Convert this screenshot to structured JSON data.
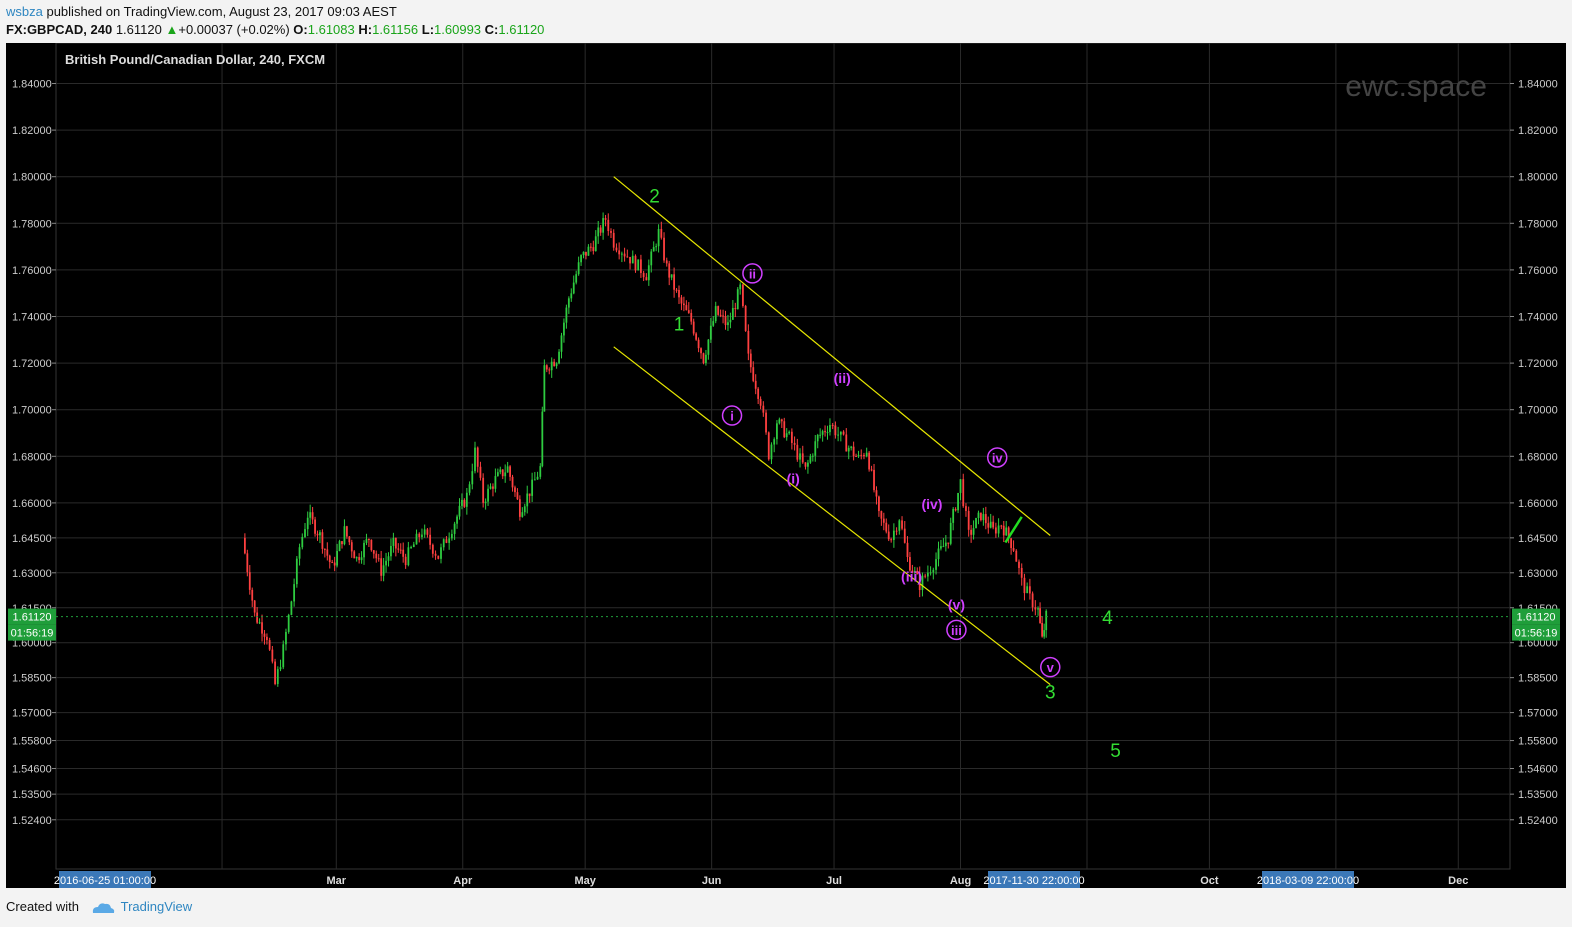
{
  "header": {
    "user": "wsbza",
    "published": " published on TradingView.com, August 23, 2017 09:03 AEST",
    "symbol": "FX:GBPCAD, 240",
    "last": "1.61120",
    "change": "+0.00037 (+0.02%)",
    "o_label": "O:",
    "o_val": "1.61083",
    "h_label": "H:",
    "h_val": "1.61156",
    "l_label": "L:",
    "l_val": "1.60993",
    "c_label": "C:",
    "c_val": "1.61120"
  },
  "footer": {
    "created_with": "Created with",
    "brand": "TradingView"
  },
  "chart_data": {
    "type": "candlestick",
    "title": "British Pound/Canadian Dollar, 240, FXCM",
    "watermark": "ewc.space",
    "colors": {
      "up": "#2ecc40",
      "down": "#ff4040",
      "channel": "#e6e600",
      "wave_major": "#33dd33",
      "wave_minor": "#d040ff",
      "last_badge": "#1f9e3a"
    },
    "y_ticks": [
      "1.84000",
      "1.82000",
      "1.80000",
      "1.78000",
      "1.76000",
      "1.74000",
      "1.72000",
      "1.70000",
      "1.68000",
      "1.66000",
      "1.64500",
      "1.63000",
      "1.61500",
      "1.60000",
      "1.58500",
      "1.57000",
      "1.55800",
      "1.54600",
      "1.53500",
      "1.52400"
    ],
    "x_ticks": [
      "Mar",
      "Apr",
      "May",
      "Jun",
      "Jul",
      "Aug",
      "Oct",
      "Dec"
    ],
    "x_badges": [
      "2016-06-25 01:00:00",
      "2017-11-30 22:00:00",
      "2018-03-09 22:00:00"
    ],
    "last_price": "1.61120",
    "countdown": "01:56:19",
    "price_path": [
      [
        "2017-02-06",
        1.645
      ],
      [
        "2017-02-09",
        1.612
      ],
      [
        "2017-02-12",
        1.603
      ],
      [
        "2017-02-14",
        1.582
      ],
      [
        "2017-02-16",
        1.597
      ],
      [
        "2017-02-18",
        1.618
      ],
      [
        "2017-02-20",
        1.641
      ],
      [
        "2017-02-22",
        1.655
      ],
      [
        "2017-02-25",
        1.646
      ],
      [
        "2017-02-28",
        1.632
      ],
      [
        "2017-03-03",
        1.648
      ],
      [
        "2017-03-06",
        1.636
      ],
      [
        "2017-03-09",
        1.645
      ],
      [
        "2017-03-12",
        1.631
      ],
      [
        "2017-03-15",
        1.642
      ],
      [
        "2017-03-18",
        1.636
      ],
      [
        "2017-03-22",
        1.648
      ],
      [
        "2017-03-26",
        1.637
      ],
      [
        "2017-03-30",
        1.652
      ],
      [
        "2017-04-02",
        1.663
      ],
      [
        "2017-04-04",
        1.682
      ],
      [
        "2017-04-06",
        1.661
      ],
      [
        "2017-04-09",
        1.67
      ],
      [
        "2017-04-12",
        1.675
      ],
      [
        "2017-04-15",
        1.657
      ],
      [
        "2017-04-18",
        1.667
      ],
      [
        "2017-04-20",
        1.675
      ],
      [
        "2017-04-21",
        1.718
      ],
      [
        "2017-04-24",
        1.722
      ],
      [
        "2017-04-27",
        1.748
      ],
      [
        "2017-04-30",
        1.765
      ],
      [
        "2017-05-03",
        1.771
      ],
      [
        "2017-05-06",
        1.782
      ],
      [
        "2017-05-08",
        1.772
      ],
      [
        "2017-05-12",
        1.765
      ],
      [
        "2017-05-16",
        1.758
      ],
      [
        "2017-05-19",
        1.776
      ],
      [
        "2017-05-21",
        1.761
      ],
      [
        "2017-05-24",
        1.747
      ],
      [
        "2017-05-27",
        1.738
      ],
      [
        "2017-05-30",
        1.722
      ],
      [
        "2017-06-02",
        1.742
      ],
      [
        "2017-06-05",
        1.736
      ],
      [
        "2017-06-08",
        1.752
      ],
      [
        "2017-06-10",
        1.722
      ],
      [
        "2017-06-13",
        1.704
      ],
      [
        "2017-06-15",
        1.681
      ],
      [
        "2017-06-17",
        1.695
      ],
      [
        "2017-06-20",
        1.688
      ],
      [
        "2017-06-24",
        1.674
      ],
      [
        "2017-06-27",
        1.688
      ],
      [
        "2017-06-30",
        1.694
      ],
      [
        "2017-07-04",
        1.685
      ],
      [
        "2017-07-07",
        1.679
      ],
      [
        "2017-07-09",
        1.683
      ],
      [
        "2017-07-12",
        1.654
      ],
      [
        "2017-07-15",
        1.645
      ],
      [
        "2017-07-17",
        1.654
      ],
      [
        "2017-07-19",
        1.636
      ],
      [
        "2017-07-22",
        1.625
      ],
      [
        "2017-07-26",
        1.636
      ],
      [
        "2017-07-29",
        1.645
      ],
      [
        "2017-08-01",
        1.669
      ],
      [
        "2017-08-03",
        1.646
      ],
      [
        "2017-08-06",
        1.655
      ],
      [
        "2017-08-09",
        1.648
      ],
      [
        "2017-08-11",
        1.651
      ],
      [
        "2017-08-14",
        1.641
      ],
      [
        "2017-08-16",
        1.626
      ],
      [
        "2017-08-18",
        1.619
      ],
      [
        "2017-08-20",
        1.614
      ],
      [
        "2017-08-21",
        1.601
      ],
      [
        "2017-08-22",
        1.6112
      ]
    ],
    "channel_upper": [
      [
        "2017-05-08",
        1.8
      ],
      [
        "2017-08-23",
        1.646
      ]
    ],
    "channel_lower": [
      [
        "2017-05-08",
        1.727
      ],
      [
        "2017-08-23",
        1.582
      ]
    ],
    "wave_major": [
      {
        "label": "2",
        "x": "2017-05-18",
        "y": 1.792
      },
      {
        "label": "1",
        "x": "2017-05-24",
        "y": 1.737
      },
      {
        "label": "3",
        "x": "2017-08-23",
        "y": 1.579
      },
      {
        "label": "4",
        "x": "2017-09-06",
        "y": 1.611
      },
      {
        "label": "5",
        "x": "2017-09-08",
        "y": 1.554
      }
    ],
    "wave_minor": [
      {
        "label": "ii",
        "x": "2017-06-11",
        "y": 1.7585,
        "circled": true
      },
      {
        "label": "i",
        "x": "2017-06-06",
        "y": 1.6975,
        "circled": true
      },
      {
        "label": "(ii)",
        "x": "2017-07-03",
        "y": 1.7135,
        "circled": false
      },
      {
        "label": "(i)",
        "x": "2017-06-21",
        "y": 1.6705,
        "circled": false
      },
      {
        "label": "iv",
        "x": "2017-08-10",
        "y": 1.6795,
        "circled": true
      },
      {
        "label": "(iv)",
        "x": "2017-07-25",
        "y": 1.6595,
        "circled": false
      },
      {
        "label": "(iii)",
        "x": "2017-07-20",
        "y": 1.6285,
        "circled": false
      },
      {
        "label": "(v)",
        "x": "2017-07-31",
        "y": 1.6165,
        "circled": false
      },
      {
        "label": "iii",
        "x": "2017-07-31",
        "y": 1.6055,
        "circled": true
      },
      {
        "label": "v",
        "x": "2017-08-23",
        "y": 1.5895,
        "circled": true
      }
    ],
    "green_mark": [
      [
        "2017-08-12",
        1.643
      ],
      [
        "2017-08-16",
        1.654
      ]
    ]
  }
}
